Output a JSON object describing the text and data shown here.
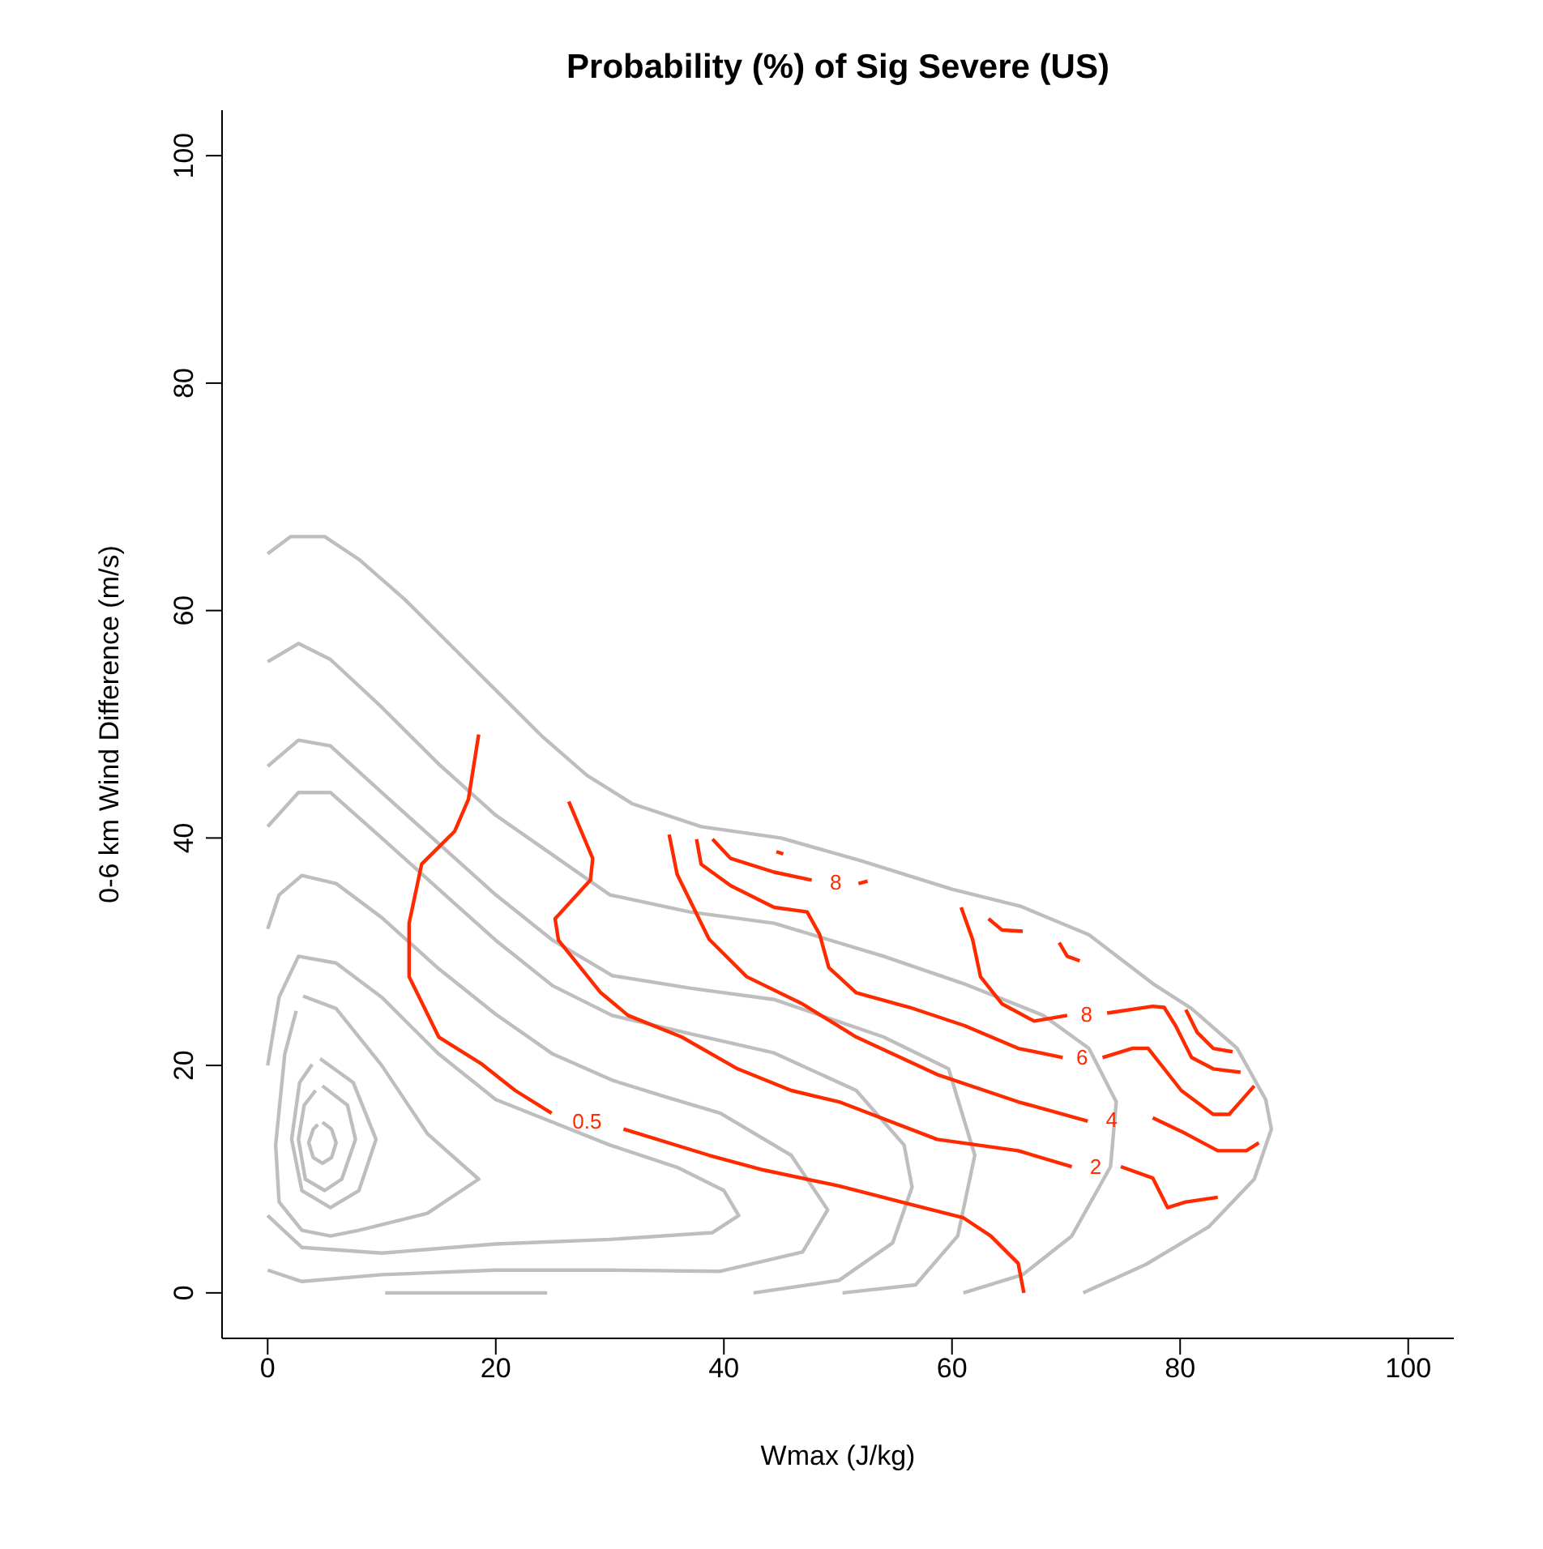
{
  "chart_data": {
    "type": "line",
    "title": "Probability (%) of Sig Severe (US)",
    "xlabel": "Wmax (J/kg)",
    "ylabel": "0-6 km Wind Difference (m/s)",
    "xlim": [
      -4,
      104
    ],
    "ylim": [
      -4,
      104
    ],
    "xticks": [
      0,
      20,
      40,
      60,
      80,
      100
    ],
    "yticks": [
      0,
      20,
      40,
      60,
      80,
      100
    ],
    "series": [
      {
        "color": "#bebebe",
        "x": [
          0,
          2,
          5,
          8,
          12,
          16,
          20,
          24,
          28,
          32,
          38,
          45,
          52,
          60,
          66,
          72,
          77.6,
          81,
          85,
          87.5,
          88,
          86.5,
          82.5,
          77,
          71.5
        ],
        "values": [
          65,
          66.5,
          66.5,
          64.5,
          61,
          57,
          53,
          49,
          45.5,
          43,
          41,
          40,
          38,
          35.5,
          34,
          31.5,
          27.2,
          25,
          21.5,
          17,
          14.4,
          10,
          5.8,
          2.5,
          0
        ]
      },
      {
        "color": "#bebebe",
        "x": [
          0,
          2.7,
          5.5,
          10,
          15,
          20,
          25,
          30,
          37,
          44.4,
          54,
          61,
          68,
          72,
          74.4,
          73.9,
          70.5,
          66.2,
          61
        ],
        "values": [
          55.5,
          57.1,
          55.7,
          51.5,
          46.5,
          42,
          38.5,
          35,
          33.5,
          32.5,
          29.6,
          27.2,
          24.4,
          21.5,
          16.8,
          11.1,
          5,
          1.6,
          0
        ]
      },
      {
        "color": "#bebebe",
        "x": [
          0,
          2.7,
          5.5,
          10,
          15,
          20,
          25,
          30.2,
          37,
          44.4,
          54,
          59.7,
          62,
          60.5,
          56.8,
          50.4
        ],
        "values": [
          46.3,
          48.6,
          48.1,
          44,
          39.5,
          35,
          31,
          27.9,
          26.8,
          25.8,
          22.5,
          19.7,
          12.1,
          5,
          0.7,
          0
        ]
      },
      {
        "color": "#bebebe",
        "x": [
          0,
          2.7,
          5.5,
          10,
          15,
          20,
          25,
          30.2,
          37,
          44.4,
          51.6,
          55.8,
          56.5,
          54.8,
          50.1,
          42.6
        ],
        "values": [
          41,
          44,
          44,
          40,
          35.5,
          31,
          27,
          24.4,
          22.8,
          21.1,
          17.8,
          13,
          9.3,
          4.4,
          1.1,
          0
        ]
      },
      {
        "color": "#bebebe",
        "x": [
          0,
          1,
          3,
          6,
          10,
          15,
          20,
          25,
          30.2,
          35,
          39.7,
          45.9,
          49.1,
          46.9,
          39.7,
          30,
          20,
          10,
          3,
          0
        ],
        "values": [
          32,
          35,
          36.7,
          36,
          33,
          28.5,
          24.5,
          21,
          18.7,
          17.2,
          15.8,
          12.1,
          7.3,
          3.6,
          1.9,
          2,
          2,
          1.6,
          1,
          2
        ]
      },
      {
        "color": "#bebebe",
        "x": [
          0,
          1,
          2.7,
          6,
          10,
          15,
          20,
          25,
          30,
          36,
          40,
          41.3,
          39,
          30,
          20,
          10,
          3,
          0
        ],
        "values": [
          20,
          26,
          29.6,
          29,
          26,
          21,
          17,
          15,
          13,
          11,
          9,
          6.8,
          5.3,
          4.7,
          4.3,
          3.5,
          4,
          6.8
        ]
      },
      {
        "color": "#bebebe",
        "x": [
          3.1,
          6,
          10,
          14,
          18.5,
          14,
          8,
          5.5,
          3,
          1,
          0.7,
          1.5,
          2.5
        ],
        "values": [
          26.1,
          25,
          20,
          14,
          10,
          7,
          5.5,
          5,
          5.5,
          8,
          13,
          21,
          24.8
        ]
      },
      {
        "color": "#bebebe",
        "x": [
          4.6,
          7.5,
          9.5,
          8,
          5.5,
          3,
          2.1,
          2.8,
          3.9
        ],
        "values": [
          20.6,
          18.5,
          13.5,
          9,
          7.5,
          9,
          13.5,
          18.5,
          20.1
        ]
      },
      {
        "color": "#bebebe",
        "x": [
          4.8,
          7,
          7.7,
          6.5,
          5,
          3.3,
          2.7,
          3.2,
          4.2
        ],
        "values": [
          18.2,
          16.5,
          13.5,
          10,
          9,
          10,
          13.5,
          16.5,
          17.8
        ]
      },
      {
        "color": "#bebebe",
        "x": [
          4.8,
          5.6,
          6,
          5.6,
          4.8,
          4,
          3.6,
          4,
          4.4
        ],
        "values": [
          15,
          14.4,
          13.2,
          11.9,
          11.4,
          11.9,
          13.2,
          14.4,
          14.8
        ]
      },
      {
        "color": "#bebebe",
        "x": [
          10.3,
          17,
          24.5
        ],
        "values": [
          0,
          0,
          0
        ]
      },
      {
        "name": "0.5",
        "color": "#ff2a00",
        "x": [
          18.5,
          17.6,
          16.4,
          13.5,
          12.4,
          12.4,
          15,
          18.8,
          21.7,
          24.9,
          28,
          31.2,
          38.7,
          43.5,
          50.1,
          56.3,
          61,
          63.4,
          65.8,
          66.3
        ],
        "values": [
          49.1,
          43.4,
          40.6,
          37.7,
          32.5,
          27.8,
          22.5,
          20.1,
          17.8,
          15.8,
          null,
          14.4,
          12.1,
          10.8,
          9.4,
          7.8,
          6.6,
          5,
          2.6,
          0
        ]
      },
      {
        "name": "2",
        "color": "#ff2a00",
        "x": [
          26.4,
          28.5,
          28.3,
          25.2,
          25.5,
          29.2,
          31.6,
          36.3,
          41.2,
          45.9,
          50.1,
          58.7,
          65.8,
          70.5,
          72.6,
          74.8,
          77.6,
          78.9,
          80.5,
          83.3
        ],
        "values": [
          43.2,
          38.2,
          36.3,
          32.9,
          31,
          26.4,
          24.4,
          22.5,
          19.7,
          17.8,
          16.8,
          13.5,
          12.5,
          11.1,
          null,
          11.1,
          10.1,
          7.5,
          8,
          8.4
        ]
      },
      {
        "name": "4",
        "color": "#ff2a00",
        "x": [
          35.2,
          35.9,
          38.7,
          42,
          46.9,
          51.6,
          58.7,
          65.8,
          71.9,
          74,
          77.6,
          80.5,
          83.3,
          85.8,
          86.9
        ],
        "values": [
          40.3,
          36.8,
          31.1,
          27.8,
          25.4,
          22.5,
          19.2,
          16.8,
          15.1,
          null,
          15.4,
          14,
          12.5,
          12.5,
          13.2
        ]
      },
      {
        "name": "6",
        "color": "#ff2a00",
        "x": [
          37.6,
          38,
          40.6,
          44.4,
          47.3,
          48.4,
          49.2,
          51.6,
          56.3,
          61.1,
          65.8,
          69.7,
          71.4,
          73.2,
          75.8,
          77.2,
          80.1,
          82.9,
          84.3,
          86.5
        ],
        "values": [
          39.9,
          37.7,
          35.8,
          33.9,
          33.5,
          31.5,
          28.6,
          26.4,
          25.1,
          23.5,
          21.5,
          20.7,
          null,
          20.7,
          21.5,
          21.5,
          17.8,
          15.7,
          15.7,
          18.2
        ]
      },
      {
        "name": "8",
        "color": "#ff2a00",
        "x": [
          39,
          40.6,
          44.4,
          47.7,
          49.8,
          51.8,
          52.6
        ],
        "values": [
          39.9,
          38.2,
          37,
          36.3,
          null,
          36,
          36.2
        ]
      },
      {
        "color": "#ff2a00",
        "x": [
          44.6,
          45.2
        ],
        "values": [
          38.8,
          38.6
        ]
      },
      {
        "name": "8",
        "color": "#ff2a00",
        "x": [
          60.8,
          61.8,
          62.5,
          64.4,
          67.2,
          70.1,
          71.8,
          73.6,
          77.6,
          78.6,
          79.6,
          81,
          82.9,
          85.3
        ],
        "values": [
          33.9,
          31.1,
          27.8,
          25.4,
          23.9,
          24.4,
          null,
          24.6,
          25.2,
          25.1,
          23.5,
          20.7,
          19.7,
          19.4
        ]
      },
      {
        "color": "#ff2a00",
        "x": [
          80.5,
          81.5,
          82.9,
          84.6
        ],
        "values": [
          24.9,
          22.9,
          21.5,
          21.2
        ]
      },
      {
        "color": "#ff2a00",
        "x": [
          63.2,
          64.4,
          66.2
        ],
        "values": [
          32.9,
          31.9,
          31.8
        ]
      },
      {
        "color": "#ff2a00",
        "x": [
          69.4,
          70.1,
          71.2
        ],
        "values": [
          30.8,
          29.6,
          29.2
        ]
      }
    ]
  }
}
